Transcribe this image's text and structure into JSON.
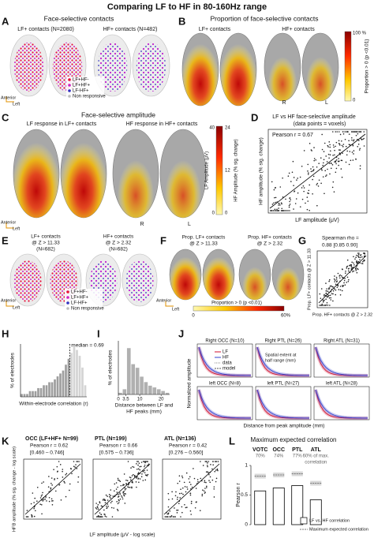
{
  "title": "Comparing LF to HF in 80-160Hz range",
  "panels": {
    "A": {
      "letter": "A",
      "title": "Face-selective contacts",
      "lf": "LF+ contacts (N=2080)",
      "hf": "HF+ contacts (N=482)",
      "legend": [
        "LF+HF-",
        "LF+HF+",
        "LF-HF+",
        "Non responsive"
      ],
      "anterior": "Anterior",
      "left": "Left"
    },
    "B": {
      "letter": "B",
      "title": "Proportion of face-selective contacts",
      "lf": "LF+ contacts",
      "hf": "HF+ contacts",
      "right_side": "R",
      "left_side": "L",
      "colorbar_top": "100 %",
      "colorbar_bottom": "0",
      "colorbar_label": "Proportion > 0 (p <0.01)"
    },
    "C": {
      "letter": "C",
      "title": "Face-selective amplitude",
      "lf": "LF response in LF+ contacts",
      "hf": "HF response in HF+ contacts",
      "lf_scale": [
        "40",
        "0"
      ],
      "hf_scale": [
        "24",
        "12",
        "0"
      ],
      "lf_scale_label": "LF Amplitude (μV)",
      "hf_scale_label": "HF Amplitude (% sig. change)",
      "right_side": "R",
      "left_side": "L",
      "anterior": "Anterior",
      "left": "Left"
    },
    "D": {
      "letter": "D",
      "title": "LF vs HF face-selective amplitude",
      "subtitle": "(data points = voxels)",
      "stat": "Pearson r = 0.67",
      "ylabel": "HF amplitude (% sig. change)",
      "xlabel": "LF amplitude (μV)"
    },
    "E": {
      "letter": "E",
      "lf": [
        "LF+ contacts",
        "@ Z > 11.33",
        "(N=682)"
      ],
      "hf": [
        "HF+ contacts",
        "@ Z > 2.32",
        "(N=682)"
      ],
      "legend": [
        "LF+HF-",
        "LF+HF+",
        "LF-HF+",
        "Non responsive"
      ],
      "anterior": "Anterior",
      "left": "Left"
    },
    "F": {
      "letter": "F",
      "lf": [
        "Prop. LF+ contacts",
        "@ Z > 11.33"
      ],
      "hf": [
        "Prop. HF+ contacts",
        "@ Z > 2.32"
      ],
      "colorbar_label": "Proportion > 0 (p <0.01)",
      "colorbar_min": "0",
      "colorbar_max": "60%",
      "anterior": "Anterior",
      "left": "Left"
    },
    "G": {
      "letter": "G",
      "stat": [
        "Spearman rho =",
        "0.88 [0.85 0.90]"
      ],
      "ylabel": "Prop. LF+ contacts @ Z > 11.33",
      "xlabel": "Prop. HF+ contacts @ Z > 2.32"
    },
    "H": {
      "letter": "H"
    },
    "I": {
      "letter": "I"
    },
    "J": {
      "letter": "J",
      "plots": [
        "Right OCC (N=10)",
        "Right PTL (N=26)",
        "Right ATL (N=31)",
        "left OCC (N=8)",
        "left PTL (N=27)",
        "left ATL (N=28)"
      ],
      "legend": [
        "LF",
        "HF",
        "data",
        "model"
      ],
      "note": [
        "Spatial extent at",
        "half range (mm)"
      ],
      "ylabel": "Normalized amplitude",
      "xlabel": "Distance from peak amplitude (mm)"
    },
    "K": {
      "letter": "K",
      "plots": [
        {
          "title": "OCC (LF+HF+ N=99)",
          "stat": "Pearson r = 0.62",
          "ci": "[0.460 – 0.746]"
        },
        {
          "title": "PTL (N=199)",
          "stat": "Pearson r = 0.66",
          "ci": "[0.575 – 0.736]"
        },
        {
          "title": "ATL (N=136)",
          "stat": "Pearson r = 0.42",
          "ci": "[0.276 – 0.560]"
        }
      ],
      "ylabel": "HFB amplitude (% sig. change - log scale)",
      "xlabel": "LF amplitude (μV - log scale)"
    },
    "L": {
      "letter": "L",
      "ratios": [
        "70%",
        "74%",
        "77%",
        "60% of max."
      ],
      "ratio_note": "correlation"
    }
  },
  "chart_data": [
    {
      "type": "histogram",
      "ylabel": "% of electrodes",
      "xlabel": "Within-electrode correlation (r)",
      "bins": [
        -0.2,
        -0.15,
        -0.1,
        -0.05,
        0,
        0.05,
        0.1,
        0.15,
        0.2,
        0.25,
        0.3,
        0.35,
        0.4,
        0.45,
        0.5,
        0.55,
        0.6,
        0.65,
        0.7,
        0.75,
        0.8,
        0.85,
        0.9,
        0.95,
        1
      ],
      "counts": [
        1,
        1,
        1,
        2,
        2,
        2,
        3,
        3,
        4,
        4,
        5,
        5,
        6,
        7,
        8,
        9,
        11,
        13,
        15,
        17,
        16,
        14,
        10,
        4
      ],
      "xlim": [
        -0.2,
        1
      ],
      "ylim": [
        0,
        18
      ],
      "color": "#9e9e9e",
      "color_after_median": "#d4d4d4",
      "median": 0.69,
      "median_label": "median = 0.69"
    },
    {
      "type": "histogram",
      "ylabel": "% of electrodes",
      "xlabel": [
        "Distance between LF and",
        "HF peaks (mm)"
      ],
      "bins": [
        0,
        2,
        4,
        6,
        8,
        10,
        12,
        14,
        16,
        18,
        20,
        22,
        24
      ],
      "counts": [
        1,
        3,
        26,
        17,
        15,
        10,
        7,
        5,
        4,
        3,
        2,
        1
      ],
      "xlim": [
        0,
        24
      ],
      "ylim": [
        0,
        30
      ],
      "xticks": [
        0,
        3.5,
        10,
        20
      ],
      "color": "#b0b0b0"
    },
    {
      "type": "bar",
      "title": "Maximum expected correlation",
      "ylabel": "Pearson r",
      "categories": [
        "VOTC",
        "OCC",
        "PTL",
        "ATL"
      ],
      "series": [
        {
          "name": "LF vs. HF correlation",
          "color": "#ffffff",
          "values": [
            0.57,
            0.62,
            0.66,
            0.42
          ]
        },
        {
          "name": "Maximum expected correlation",
          "color": "#777777",
          "style": "dashed",
          "values": [
            0.82,
            0.84,
            0.86,
            0.7
          ]
        }
      ],
      "ylim": [
        0,
        1
      ],
      "yticks": [
        0,
        0.5,
        1
      ]
    }
  ]
}
